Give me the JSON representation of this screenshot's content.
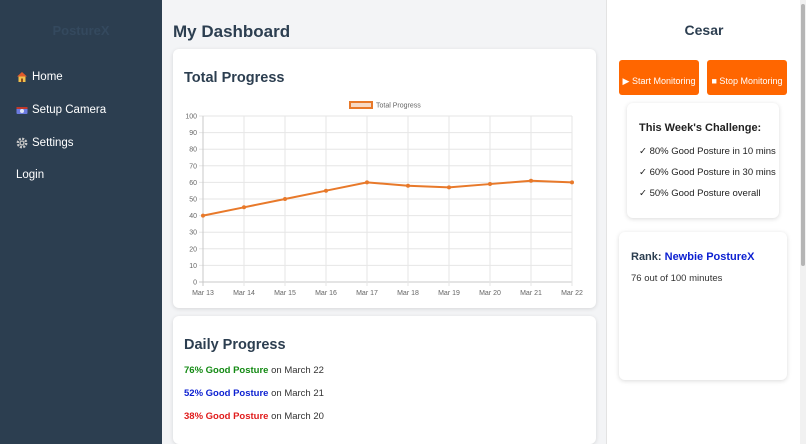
{
  "sidebar": {
    "brand": "PostureX",
    "items": [
      {
        "label": "Home",
        "icon": "house-icon"
      },
      {
        "label": "Setup Camera",
        "icon": "camera-icon"
      },
      {
        "label": "Settings",
        "icon": "gear-icon"
      },
      {
        "label": "Login",
        "icon": ""
      }
    ]
  },
  "main": {
    "title": "My Dashboard",
    "total_card_title": "Total Progress",
    "daily_card_title": "Daily Progress",
    "daily": [
      {
        "percent": "76% Good Posture",
        "suffix": " on March 22",
        "color": "#138a13"
      },
      {
        "percent": "52% Good Posture",
        "suffix": " on March 21",
        "color": "#0b1fd1"
      },
      {
        "percent": "38% Good Posture",
        "suffix": " on March 20",
        "color": "#e01b1b"
      }
    ]
  },
  "chart_data": {
    "type": "line",
    "title": "",
    "legend": "Total Progress",
    "legend_position": "top",
    "grid": true,
    "categories": [
      "Mar 13",
      "Mar 14",
      "Mar 15",
      "Mar 16",
      "Mar 17",
      "Mar 18",
      "Mar 19",
      "Mar 20",
      "Mar 21",
      "Mar 22"
    ],
    "series": [
      {
        "name": "Total Progress",
        "values": [
          40,
          45,
          50,
          55,
          60,
          58,
          57,
          59,
          61,
          60
        ],
        "color": "#e8792a"
      }
    ],
    "yticks": [
      0,
      10,
      20,
      30,
      40,
      50,
      60,
      70,
      80,
      90,
      100
    ],
    "ylim": [
      0,
      100
    ]
  },
  "right": {
    "user_name": "Cesar",
    "start_button": "▶ Start Monitoring",
    "stop_button": "■ Stop Monitoring",
    "challenge_title": "This Week's Challenge:",
    "challenges": [
      "✓ 80% Good Posture in 10 mins",
      "✓ 60% Good Posture in 30 mins",
      "✓ 50% Good Posture overall"
    ],
    "rank_label": "Rank: ",
    "rank_value": "Newbie PostureX",
    "rank_progress": "76 out of 100 minutes"
  },
  "colors": {
    "sidebar": "#2c3e50",
    "accent": "#ff6600",
    "rank": "#0b1fd1"
  }
}
